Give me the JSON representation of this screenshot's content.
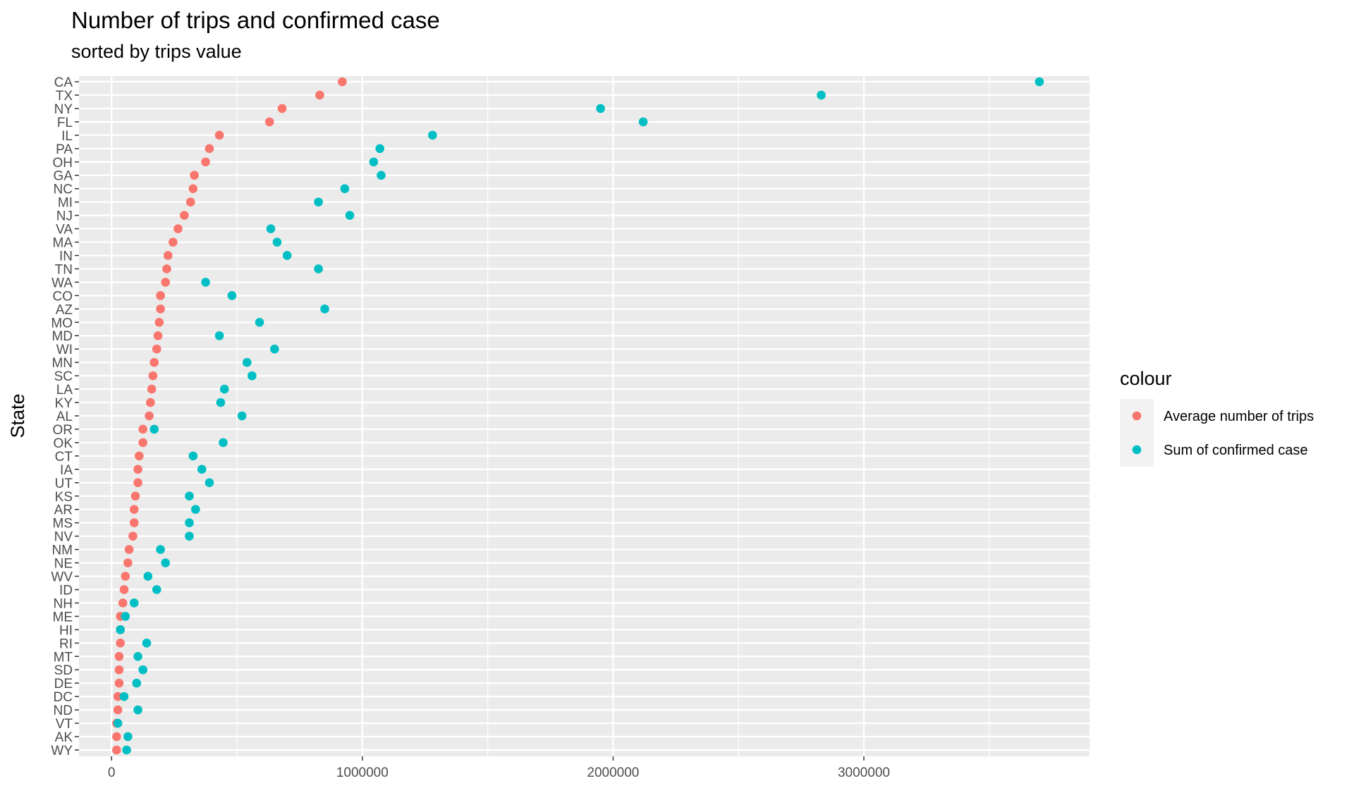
{
  "chart_data": {
    "type": "scatter",
    "title": "Number of trips and confirmed case",
    "subtitle": "sorted by trips value",
    "xlabel": "",
    "ylabel": "State",
    "xlim": [
      -130000,
      3900000
    ],
    "x_ticks": [
      0,
      1000000,
      2000000,
      3000000
    ],
    "x_tick_labels": [
      "0",
      "1000000",
      "2000000",
      "3000000"
    ],
    "categories": [
      "CA",
      "TX",
      "NY",
      "FL",
      "IL",
      "PA",
      "OH",
      "GA",
      "NC",
      "MI",
      "NJ",
      "VA",
      "MA",
      "IN",
      "TN",
      "WA",
      "CO",
      "AZ",
      "MO",
      "MD",
      "WI",
      "MN",
      "SC",
      "LA",
      "KY",
      "AL",
      "OR",
      "OK",
      "CT",
      "IA",
      "UT",
      "KS",
      "AR",
      "MS",
      "NV",
      "NM",
      "NE",
      "WV",
      "ID",
      "NH",
      "ME",
      "HI",
      "RI",
      "MT",
      "SD",
      "DE",
      "DC",
      "ND",
      "VT",
      "AK",
      "WY"
    ],
    "series": [
      {
        "name": "Average number of trips",
        "color": "#F8766D",
        "values": [
          920000,
          830000,
          680000,
          630000,
          430000,
          390000,
          375000,
          330000,
          325000,
          315000,
          290000,
          265000,
          245000,
          225000,
          220000,
          215000,
          195000,
          195000,
          190000,
          185000,
          180000,
          170000,
          165000,
          160000,
          155000,
          150000,
          125000,
          125000,
          110000,
          105000,
          105000,
          95000,
          90000,
          90000,
          85000,
          70000,
          65000,
          55000,
          50000,
          45000,
          35000,
          35000,
          35000,
          30000,
          30000,
          30000,
          25000,
          25000,
          20000,
          20000,
          20000
        ]
      },
      {
        "name": "Sum of confirmed case",
        "color": "#00BFC4",
        "values": [
          3700000,
          2830000,
          1950000,
          2120000,
          1280000,
          1070000,
          1045000,
          1075000,
          930000,
          825000,
          950000,
          635000,
          660000,
          700000,
          825000,
          375000,
          480000,
          850000,
          590000,
          430000,
          650000,
          540000,
          560000,
          450000,
          435000,
          520000,
          170000,
          445000,
          325000,
          360000,
          390000,
          310000,
          335000,
          310000,
          310000,
          195000,
          215000,
          145000,
          180000,
          90000,
          55000,
          35000,
          140000,
          105000,
          125000,
          100000,
          50000,
          105000,
          25000,
          65000,
          60000
        ]
      }
    ],
    "legend": {
      "title": "colour",
      "position": "right",
      "items": [
        "Average number of trips",
        "Sum of confirmed case"
      ]
    },
    "grid": true,
    "panel_background": "#EBEBEB",
    "grid_color": "#FFFFFF",
    "tick_label_color": "#4D4D4D"
  }
}
